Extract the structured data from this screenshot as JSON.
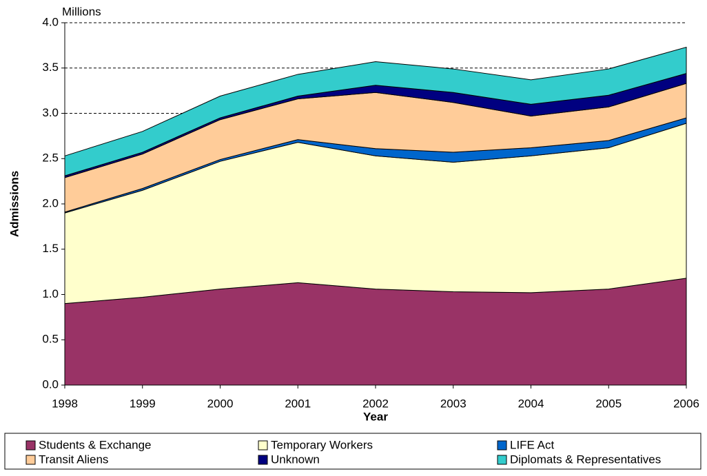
{
  "chart_data": {
    "type": "stacked_area",
    "unit_label": "Millions",
    "ylabel": "Admissions",
    "xlabel": "Year",
    "categories": [
      "1998",
      "1999",
      "2000",
      "2001",
      "2002",
      "2003",
      "2004",
      "2005",
      "2006"
    ],
    "series": [
      {
        "name": "Students & Exchange",
        "color": "#993366",
        "values": [
          0.9,
          0.97,
          1.06,
          1.13,
          1.06,
          1.03,
          1.02,
          1.06,
          1.18
        ]
      },
      {
        "name": "Temporary Workers",
        "color": "#FFFFCC",
        "values": [
          1.0,
          1.18,
          1.41,
          1.55,
          1.47,
          1.43,
          1.51,
          1.56,
          1.71
        ]
      },
      {
        "name": "LIFE Act",
        "color": "#0066CC",
        "values": [
          0.01,
          0.02,
          0.02,
          0.03,
          0.08,
          0.11,
          0.09,
          0.08,
          0.06
        ]
      },
      {
        "name": "Transit Aliens",
        "color": "#FFCC99",
        "values": [
          0.38,
          0.38,
          0.44,
          0.45,
          0.62,
          0.55,
          0.35,
          0.37,
          0.38
        ]
      },
      {
        "name": "Unknown",
        "color": "#000080",
        "values": [
          0.02,
          0.02,
          0.02,
          0.03,
          0.08,
          0.11,
          0.13,
          0.13,
          0.11
        ]
      },
      {
        "name": "Diplomats & Representatives",
        "color": "#33CCCC",
        "values": [
          0.22,
          0.23,
          0.24,
          0.24,
          0.26,
          0.26,
          0.27,
          0.29,
          0.29
        ]
      }
    ],
    "ylim": [
      0,
      4
    ],
    "yticks": [
      {
        "value": 0,
        "label": "0.0"
      },
      0.5,
      {
        "value": 1,
        "label": "1.0"
      },
      1.5,
      {
        "value": 2,
        "label": "2.0"
      },
      2.5,
      {
        "value": 3,
        "label": "3.0"
      },
      3.5,
      {
        "value": 4,
        "label": "4.0"
      }
    ],
    "grid": true
  }
}
